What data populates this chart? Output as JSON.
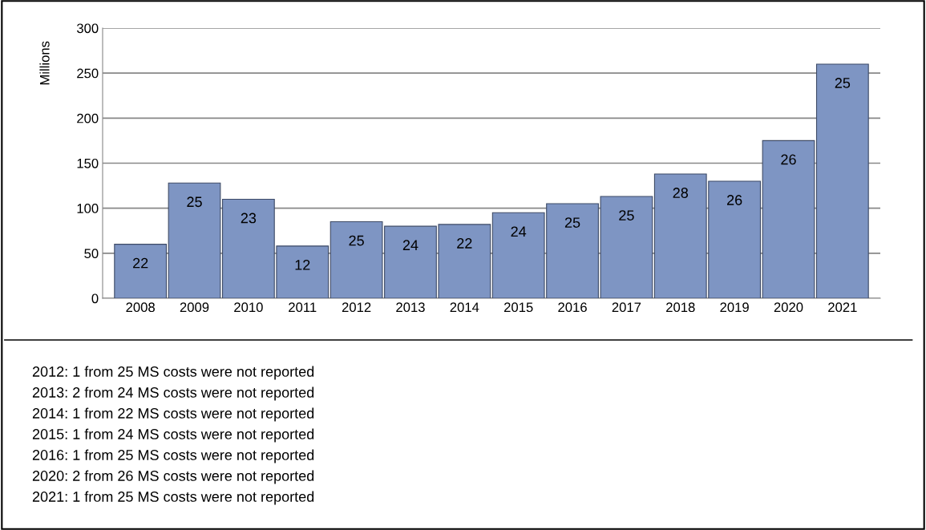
{
  "chart_data": {
    "type": "bar",
    "ylabel": "Millions",
    "categories": [
      "2008",
      "2009",
      "2010",
      "2011",
      "2012",
      "2013",
      "2014",
      "2015",
      "2016",
      "2017",
      "2018",
      "2019",
      "2020",
      "2021"
    ],
    "values": [
      60,
      128,
      110,
      58,
      85,
      80,
      82,
      95,
      105,
      113,
      138,
      130,
      175,
      260
    ],
    "color": "#7e95c3",
    "ylim": [
      0,
      300
    ],
    "yticks": [
      0,
      50,
      100,
      150,
      200,
      250,
      300
    ],
    "grid": "y",
    "annotations": [
      {
        "text": "22",
        "x": "2008",
        "y": 60
      },
      {
        "text": "25",
        "x": "2009",
        "y": 128
      },
      {
        "text": "23",
        "x": "2010",
        "y": 110
      },
      {
        "text": "12",
        "x": "2011",
        "y": 58
      },
      {
        "text": "25",
        "x": "2012",
        "y": 85
      },
      {
        "text": "24",
        "x": "2013",
        "y": 80
      },
      {
        "text": "22",
        "x": "2014",
        "y": 82
      },
      {
        "text": "24",
        "x": "2015",
        "y": 95
      },
      {
        "text": "25",
        "x": "2016",
        "y": 105
      },
      {
        "text": "25",
        "x": "2017",
        "y": 113
      },
      {
        "text": "28",
        "x": "2018",
        "y": 138
      },
      {
        "text": "26",
        "x": "2019",
        "y": 130
      },
      {
        "text": "26",
        "x": "2020",
        "y": 175
      },
      {
        "text": "25",
        "x": "2021",
        "y": 260
      },
      "2012: 1 from 25 MS costs were not reported",
      "2013: 2 from 24 MS costs were not reported",
      "2014: 1 from 22 MS costs were not reported",
      "2015: 1 from 24 MS costs were not reported",
      "2016: 1 from 25 MS costs were not reported",
      "2020: 2 from 26 MS costs were not reported",
      "2021: 1 from 25 MS costs were not reported"
    ]
  }
}
